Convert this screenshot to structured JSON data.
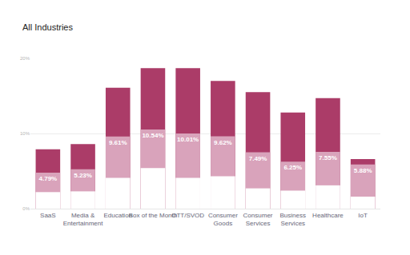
{
  "chart_data": {
    "type": "bar",
    "title": "All Industries",
    "categories": [
      "SaaS",
      "Media & Entertainment",
      "Education",
      "Box of the Month",
      "OTT/SVOD",
      "Consumer Goods",
      "Consumer Services",
      "Business Services",
      "Healthcare",
      "IoT"
    ],
    "series": [
      {
        "color": "#ab3c68",
        "values": [
          7.9,
          8.6,
          16.1,
          18.7,
          18.7,
          17.0,
          15.5,
          12.8,
          14.7,
          6.6
        ]
      },
      {
        "color": "#d9a3bb",
        "values": [
          4.79,
          5.23,
          9.61,
          10.54,
          10.01,
          9.62,
          7.49,
          6.25,
          7.55,
          5.88
        ],
        "value_labels": [
          "4.79%",
          "5.23%",
          "9.61%",
          "10.54%",
          "10.01%",
          "9.62%",
          "7.49%",
          "6.25%",
          "7.55%",
          "5.88%"
        ],
        "data_labels": true
      },
      {
        "color": "#ffffff",
        "values": [
          2.2,
          2.3,
          4.1,
          5.4,
          4.1,
          4.3,
          2.7,
          2.4,
          3.1,
          1.6
        ]
      }
    ],
    "ylim": [
      0,
      20
    ],
    "yticks": [
      {
        "value": 0,
        "label": "0%"
      },
      {
        "value": 10,
        "label": "10%"
      },
      {
        "value": 20,
        "label": "20%"
      }
    ],
    "grid": true
  }
}
